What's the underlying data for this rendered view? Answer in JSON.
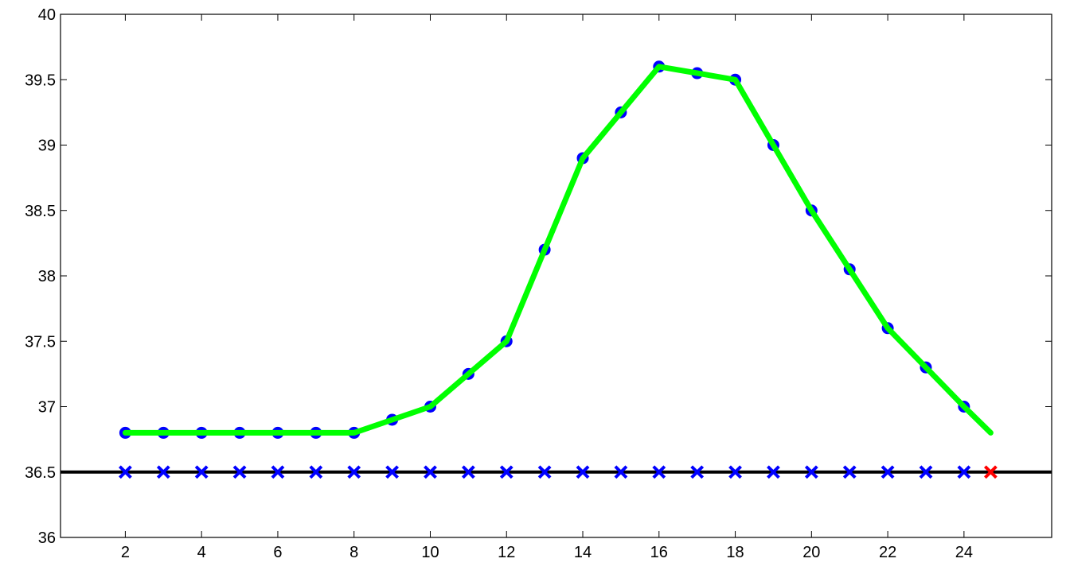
{
  "chart_data": {
    "type": "line",
    "title": "",
    "xlabel": "",
    "ylabel": "",
    "xlim": [
      0.3,
      26.3
    ],
    "ylim": [
      36,
      40
    ],
    "grid": false,
    "x_ticks": [
      2,
      4,
      6,
      8,
      10,
      12,
      14,
      16,
      18,
      20,
      22,
      24
    ],
    "x_tick_labels": [
      "2",
      "4",
      "6",
      "8",
      "10",
      "12",
      "14",
      "16",
      "18",
      "20",
      "22",
      "24"
    ],
    "y_ticks": [
      36,
      36.5,
      37,
      37.5,
      38,
      38.5,
      39,
      39.5,
      40
    ],
    "y_tick_labels": [
      "36",
      "36.5",
      "37",
      "37.5",
      "38",
      "38.5",
      "39",
      "39.5",
      "40"
    ],
    "series": [
      {
        "role": "circle-markers",
        "color": "#0000ff",
        "marker": "circle",
        "x": [
          2,
          3,
          4,
          5,
          6,
          7,
          8,
          9,
          10,
          11,
          12,
          13,
          14,
          15,
          16,
          17,
          18,
          19,
          20,
          21,
          22,
          23,
          24
        ],
        "y": [
          36.8,
          36.8,
          36.8,
          36.8,
          36.8,
          36.8,
          36.8,
          36.9,
          37.0,
          37.25,
          37.5,
          38.2,
          38.9,
          39.25,
          39.6,
          39.55,
          39.5,
          39.0,
          38.5,
          38.05,
          37.6,
          37.3,
          37.0
        ]
      },
      {
        "role": "line",
        "color": "#00ff00",
        "x": [
          2,
          3,
          4,
          5,
          6,
          7,
          8,
          9,
          10,
          11,
          12,
          13,
          14,
          15,
          16,
          17,
          18,
          19,
          20,
          21,
          22,
          23,
          24,
          24.7
        ],
        "y": [
          36.8,
          36.8,
          36.8,
          36.8,
          36.8,
          36.8,
          36.8,
          36.9,
          37.0,
          37.25,
          37.5,
          38.2,
          38.9,
          39.25,
          39.6,
          39.55,
          39.5,
          39.0,
          38.5,
          38.05,
          37.6,
          37.3,
          37.0,
          36.8
        ]
      },
      {
        "role": "x-markers",
        "color": "#0000ff",
        "marker": "x",
        "x": [
          2,
          3,
          4,
          5,
          6,
          7,
          8,
          9,
          10,
          11,
          12,
          13,
          14,
          15,
          16,
          17,
          18,
          19,
          20,
          21,
          22,
          23,
          24
        ],
        "y": [
          36.5,
          36.5,
          36.5,
          36.5,
          36.5,
          36.5,
          36.5,
          36.5,
          36.5,
          36.5,
          36.5,
          36.5,
          36.5,
          36.5,
          36.5,
          36.5,
          36.5,
          36.5,
          36.5,
          36.5,
          36.5,
          36.5,
          36.5
        ]
      },
      {
        "role": "highlight-x-marker",
        "color": "#ff0000",
        "marker": "x",
        "x": [
          24.7
        ],
        "y": [
          36.5
        ]
      }
    ],
    "reference_lines": [
      {
        "orientation": "horizontal",
        "y": 36.5,
        "color": "#000000"
      }
    ]
  }
}
